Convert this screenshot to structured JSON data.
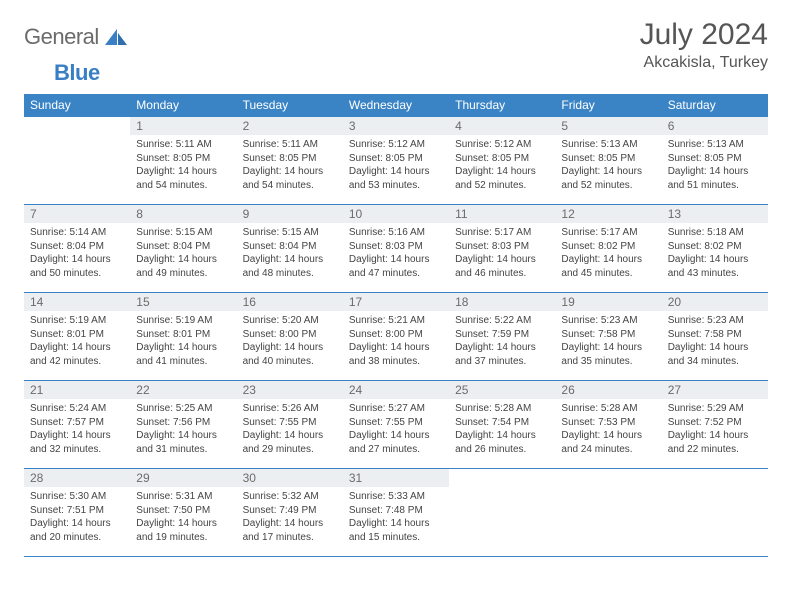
{
  "brand": {
    "word1": "General",
    "word2": "Blue"
  },
  "title": "July 2024",
  "location": "Akcakisla, Turkey",
  "colors": {
    "header_bg": "#3a84c6",
    "header_fg": "#ffffff",
    "daynum_bg": "#eceff1",
    "rule": "#3a84c6",
    "brand_gray": "#6b6b6b",
    "brand_blue": "#3a7fc4"
  },
  "weekdays": [
    "Sunday",
    "Monday",
    "Tuesday",
    "Wednesday",
    "Thursday",
    "Friday",
    "Saturday"
  ],
  "first_day_col": 1,
  "days": [
    {
      "n": 1,
      "sunrise": "5:11 AM",
      "sunset": "8:05 PM",
      "daylight": "14 hours and 54 minutes."
    },
    {
      "n": 2,
      "sunrise": "5:11 AM",
      "sunset": "8:05 PM",
      "daylight": "14 hours and 54 minutes."
    },
    {
      "n": 3,
      "sunrise": "5:12 AM",
      "sunset": "8:05 PM",
      "daylight": "14 hours and 53 minutes."
    },
    {
      "n": 4,
      "sunrise": "5:12 AM",
      "sunset": "8:05 PM",
      "daylight": "14 hours and 52 minutes."
    },
    {
      "n": 5,
      "sunrise": "5:13 AM",
      "sunset": "8:05 PM",
      "daylight": "14 hours and 52 minutes."
    },
    {
      "n": 6,
      "sunrise": "5:13 AM",
      "sunset": "8:05 PM",
      "daylight": "14 hours and 51 minutes."
    },
    {
      "n": 7,
      "sunrise": "5:14 AM",
      "sunset": "8:04 PM",
      "daylight": "14 hours and 50 minutes."
    },
    {
      "n": 8,
      "sunrise": "5:15 AM",
      "sunset": "8:04 PM",
      "daylight": "14 hours and 49 minutes."
    },
    {
      "n": 9,
      "sunrise": "5:15 AM",
      "sunset": "8:04 PM",
      "daylight": "14 hours and 48 minutes."
    },
    {
      "n": 10,
      "sunrise": "5:16 AM",
      "sunset": "8:03 PM",
      "daylight": "14 hours and 47 minutes."
    },
    {
      "n": 11,
      "sunrise": "5:17 AM",
      "sunset": "8:03 PM",
      "daylight": "14 hours and 46 minutes."
    },
    {
      "n": 12,
      "sunrise": "5:17 AM",
      "sunset": "8:02 PM",
      "daylight": "14 hours and 45 minutes."
    },
    {
      "n": 13,
      "sunrise": "5:18 AM",
      "sunset": "8:02 PM",
      "daylight": "14 hours and 43 minutes."
    },
    {
      "n": 14,
      "sunrise": "5:19 AM",
      "sunset": "8:01 PM",
      "daylight": "14 hours and 42 minutes."
    },
    {
      "n": 15,
      "sunrise": "5:19 AM",
      "sunset": "8:01 PM",
      "daylight": "14 hours and 41 minutes."
    },
    {
      "n": 16,
      "sunrise": "5:20 AM",
      "sunset": "8:00 PM",
      "daylight": "14 hours and 40 minutes."
    },
    {
      "n": 17,
      "sunrise": "5:21 AM",
      "sunset": "8:00 PM",
      "daylight": "14 hours and 38 minutes."
    },
    {
      "n": 18,
      "sunrise": "5:22 AM",
      "sunset": "7:59 PM",
      "daylight": "14 hours and 37 minutes."
    },
    {
      "n": 19,
      "sunrise": "5:23 AM",
      "sunset": "7:58 PM",
      "daylight": "14 hours and 35 minutes."
    },
    {
      "n": 20,
      "sunrise": "5:23 AM",
      "sunset": "7:58 PM",
      "daylight": "14 hours and 34 minutes."
    },
    {
      "n": 21,
      "sunrise": "5:24 AM",
      "sunset": "7:57 PM",
      "daylight": "14 hours and 32 minutes."
    },
    {
      "n": 22,
      "sunrise": "5:25 AM",
      "sunset": "7:56 PM",
      "daylight": "14 hours and 31 minutes."
    },
    {
      "n": 23,
      "sunrise": "5:26 AM",
      "sunset": "7:55 PM",
      "daylight": "14 hours and 29 minutes."
    },
    {
      "n": 24,
      "sunrise": "5:27 AM",
      "sunset": "7:55 PM",
      "daylight": "14 hours and 27 minutes."
    },
    {
      "n": 25,
      "sunrise": "5:28 AM",
      "sunset": "7:54 PM",
      "daylight": "14 hours and 26 minutes."
    },
    {
      "n": 26,
      "sunrise": "5:28 AM",
      "sunset": "7:53 PM",
      "daylight": "14 hours and 24 minutes."
    },
    {
      "n": 27,
      "sunrise": "5:29 AM",
      "sunset": "7:52 PM",
      "daylight": "14 hours and 22 minutes."
    },
    {
      "n": 28,
      "sunrise": "5:30 AM",
      "sunset": "7:51 PM",
      "daylight": "14 hours and 20 minutes."
    },
    {
      "n": 29,
      "sunrise": "5:31 AM",
      "sunset": "7:50 PM",
      "daylight": "14 hours and 19 minutes."
    },
    {
      "n": 30,
      "sunrise": "5:32 AM",
      "sunset": "7:49 PM",
      "daylight": "14 hours and 17 minutes."
    },
    {
      "n": 31,
      "sunrise": "5:33 AM",
      "sunset": "7:48 PM",
      "daylight": "14 hours and 15 minutes."
    }
  ],
  "labels": {
    "sunrise": "Sunrise:",
    "sunset": "Sunset:",
    "daylight": "Daylight:"
  }
}
